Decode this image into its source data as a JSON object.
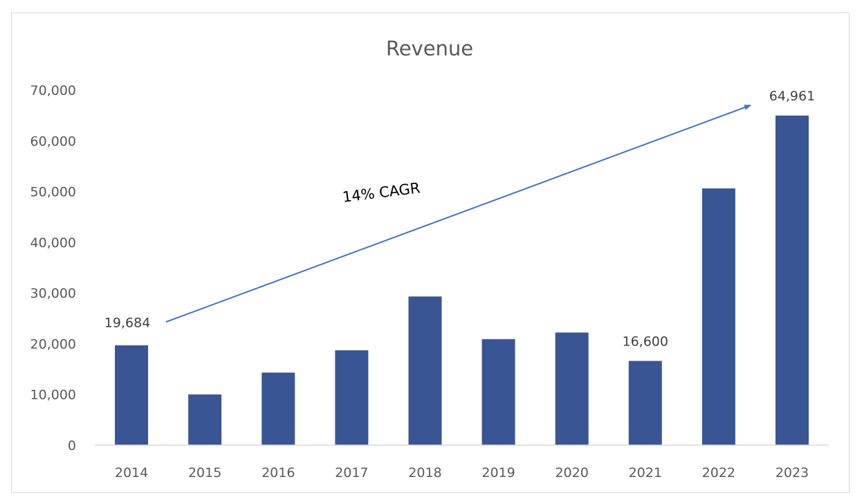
{
  "chart_data": {
    "type": "bar",
    "title": "Revenue",
    "xlabel": "",
    "ylabel": "",
    "categories": [
      "2014",
      "2015",
      "2016",
      "2017",
      "2018",
      "2019",
      "2020",
      "2021",
      "2022",
      "2023"
    ],
    "values": [
      19684,
      10000,
      14300,
      18700,
      29300,
      20900,
      22200,
      16600,
      50600,
      64961
    ],
    "ylim": [
      0,
      70000
    ],
    "yticks": [
      "0",
      "10,000",
      "20,000",
      "30,000",
      "40,000",
      "50,000",
      "60,000",
      "70,000"
    ],
    "data_labels": [
      {
        "category": "2014",
        "text": "19,684"
      },
      {
        "category": "2021",
        "text": "16,600"
      },
      {
        "category": "2023",
        "text": "64,961"
      }
    ],
    "annotation": "14% CAGR",
    "grid": false,
    "legend": "none",
    "bar_color": "#3a5594",
    "arrow_color": "#4472c4"
  }
}
